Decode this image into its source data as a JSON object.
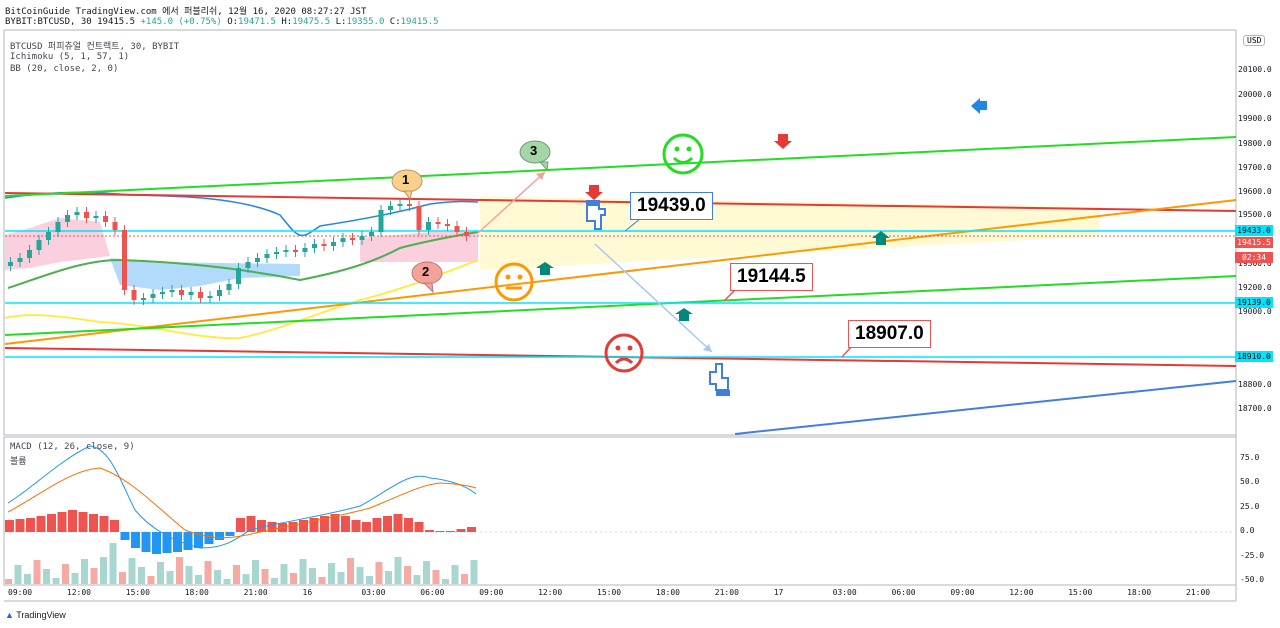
{
  "header": {
    "line1": "BitCoinGuide TradingView.com 에서 퍼블리쉬, 12월 16, 2020 08:27:27 JST",
    "symbol": "BYBIT:BTCUSD, 30",
    "last": "19415.5",
    "change": "+145.0 (+0.75%)",
    "o_label": "O:",
    "o_value": "19471.5",
    "h_label": "H:",
    "h_value": "19475.5",
    "l_label": "L:",
    "l_value": "19355.0",
    "c_label": "C:",
    "c_value": "19415.5"
  },
  "legend": {
    "main": "BTCUSD 퍼피츄얼 컨트랙트, 30, BYBIT",
    "ichimoku": "Ichimoku (5, 1, 57, 1)",
    "bb": "BB (20, close, 2, 0)",
    "macd": "MACD (12, 26, close, 9)",
    "volume": "볼륨"
  },
  "price_axis": {
    "currency": "USD",
    "ticks": [
      "20100.0",
      "20000.0",
      "19900.0",
      "19800.0",
      "19700.0",
      "19600.0",
      "19500.0",
      "19300.0",
      "19200.0",
      "19000.0",
      "18800.0",
      "18700.0"
    ],
    "macd_ticks": [
      "75.0",
      "50.0",
      "25.0",
      "0.0",
      "-25.0",
      "-50.0"
    ],
    "tags": [
      {
        "label": "19433.0",
        "color": "#00e5ff"
      },
      {
        "label": "19415.5",
        "color": "#ef5350"
      },
      {
        "label": "02:34",
        "color": "#ef5350"
      },
      {
        "label": "19139.0",
        "color": "#00e5ff"
      },
      {
        "label": "18910.0",
        "color": "#00e5ff"
      }
    ]
  },
  "time_axis": [
    "09:00",
    "12:00",
    "15:00",
    "18:00",
    "21:00",
    "16",
    "03:00",
    "06:00",
    "09:00",
    "12:00",
    "15:00",
    "18:00",
    "21:00",
    "17",
    "03:00",
    "06:00",
    "09:00",
    "12:00",
    "15:00",
    "18:00",
    "21:00"
  ],
  "annotations": {
    "callout_a": "19439.0",
    "callout_b": "19144.5",
    "callout_c": "18907.0",
    "bubble_1": "1",
    "bubble_2": "2",
    "bubble_3": "3"
  },
  "colors": {
    "up": "#26a69a",
    "down": "#ef5350",
    "green_line": "#22dd22",
    "red_line": "#e53935",
    "orange_line": "#ff9800",
    "cyan_line": "#00e5ff",
    "blue_line": "#3f7fe0"
  },
  "icons": [
    "smiley-happy-icon",
    "smiley-neutral-icon",
    "smiley-sad-icon",
    "pointing-hand-icon",
    "arrow-up-icon",
    "arrow-down-icon",
    "arrow-left-icon"
  ],
  "footer": {
    "brand": "TradingView"
  }
}
